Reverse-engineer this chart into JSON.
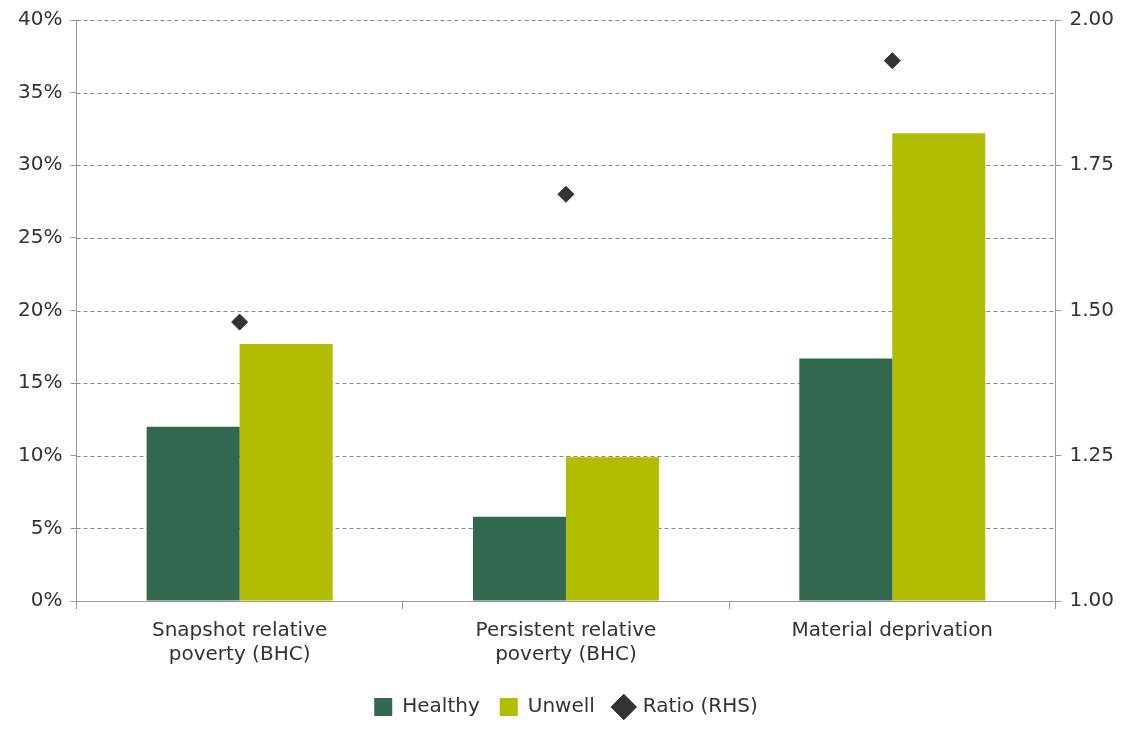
{
  "chart_data": {
    "type": "bar",
    "categories": [
      "Snapshot relative poverty (BHC)",
      "Persistent relative poverty (BHC)",
      "Material deprivation"
    ],
    "series": [
      {
        "name": "Healthy",
        "color": "#336850",
        "values": [
          12.0,
          5.8,
          16.7
        ]
      },
      {
        "name": "Unwell",
        "color": "#b0bd00",
        "values": [
          17.7,
          9.9,
          32.2
        ]
      },
      {
        "name": "Ratio (RHS)",
        "type": "scatter",
        "axis": "y2",
        "marker": "diamond",
        "color": "#333333",
        "x": [
          "Snapshot relative poverty (BHC)",
          "Persistent relative poverty (BHC)",
          "Material deprivation"
        ],
        "values": [
          1.48,
          1.7,
          1.93
        ]
      }
    ],
    "ylim": [
      0,
      40
    ],
    "yticks": [
      {
        "value": 0,
        "label": "0%"
      },
      {
        "value": 5,
        "label": "5%"
      },
      {
        "value": 10,
        "label": "10%"
      },
      {
        "value": 15,
        "label": "15%"
      },
      {
        "value": 20,
        "label": "20%"
      },
      {
        "value": 25,
        "label": "25%"
      },
      {
        "value": 30,
        "label": "30%"
      },
      {
        "value": 35,
        "label": "35%"
      },
      {
        "value": 40,
        "label": "40%"
      }
    ],
    "y2lim": [
      1,
      2
    ],
    "y2ticks": [
      {
        "value": 1,
        "label": "1.00"
      },
      {
        "value": 1.25,
        "label": "1.25"
      },
      {
        "value": 1.5,
        "label": "1.50"
      },
      {
        "value": 1.75,
        "label": "1.75"
      },
      {
        "value": 2,
        "label": "2.00"
      }
    ],
    "grid": "y",
    "line_style": "dashed",
    "legend": "bottom"
  }
}
